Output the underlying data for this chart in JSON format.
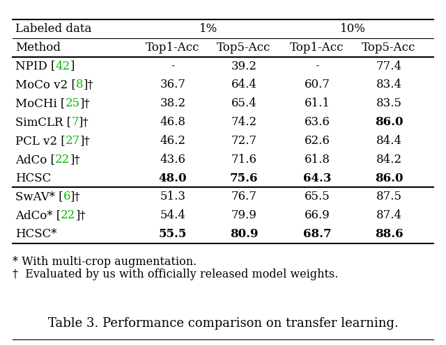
{
  "title": "Table 3. Performance comparison on transfer learning.",
  "footnote1": "* With multi-crop augmentation.",
  "footnote2": "†  Evaluated by us with officially released model weights.",
  "rows": [
    {
      "method_parts": [
        [
          "NPID [",
          "black"
        ],
        [
          "42",
          "#00bb00"
        ],
        [
          "]",
          "black"
        ]
      ],
      "values": [
        "-",
        "39.2",
        "-",
        "77.4"
      ],
      "bold": [
        false,
        false,
        false,
        false
      ]
    },
    {
      "method_parts": [
        [
          "MoCo v2 [",
          "black"
        ],
        [
          "8",
          "#00bb00"
        ],
        [
          "]†",
          "black"
        ]
      ],
      "values": [
        "36.7",
        "64.4",
        "60.7",
        "83.4"
      ],
      "bold": [
        false,
        false,
        false,
        false
      ]
    },
    {
      "method_parts": [
        [
          "MoCHi [",
          "black"
        ],
        [
          "25",
          "#00bb00"
        ],
        [
          "]†",
          "black"
        ]
      ],
      "values": [
        "38.2",
        "65.4",
        "61.1",
        "83.5"
      ],
      "bold": [
        false,
        false,
        false,
        false
      ]
    },
    {
      "method_parts": [
        [
          "SimCLR [",
          "black"
        ],
        [
          "7",
          "#00bb00"
        ],
        [
          "]†",
          "black"
        ]
      ],
      "values": [
        "46.8",
        "74.2",
        "63.6",
        "86.0"
      ],
      "bold": [
        false,
        false,
        false,
        true
      ]
    },
    {
      "method_parts": [
        [
          "PCL v2 [",
          "black"
        ],
        [
          "27",
          "#00bb00"
        ],
        [
          "]†",
          "black"
        ]
      ],
      "values": [
        "46.2",
        "72.7",
        "62.6",
        "84.4"
      ],
      "bold": [
        false,
        false,
        false,
        false
      ]
    },
    {
      "method_parts": [
        [
          "AdCo [",
          "black"
        ],
        [
          "22",
          "#00bb00"
        ],
        [
          "]†",
          "black"
        ]
      ],
      "values": [
        "43.6",
        "71.6",
        "61.8",
        "84.2"
      ],
      "bold": [
        false,
        false,
        false,
        false
      ]
    },
    {
      "method_parts": [
        [
          "HCSC",
          "black"
        ]
      ],
      "values": [
        "48.0",
        "75.6",
        "64.3",
        "86.0"
      ],
      "bold": [
        true,
        true,
        true,
        true
      ],
      "separator_below": true
    },
    {
      "method_parts": [
        [
          "SwAV* [",
          "black"
        ],
        [
          "6",
          "#00bb00"
        ],
        [
          "]†",
          "black"
        ]
      ],
      "values": [
        "51.3",
        "76.7",
        "65.5",
        "87.5"
      ],
      "bold": [
        false,
        false,
        false,
        false
      ]
    },
    {
      "method_parts": [
        [
          "AdCo* [",
          "black"
        ],
        [
          "22",
          "#00bb00"
        ],
        [
          "]†",
          "black"
        ]
      ],
      "values": [
        "54.4",
        "79.9",
        "66.9",
        "87.4"
      ],
      "bold": [
        false,
        false,
        false,
        false
      ]
    },
    {
      "method_parts": [
        [
          "HCSC*",
          "black"
        ]
      ],
      "values": [
        "55.5",
        "80.9",
        "68.7",
        "88.6"
      ],
      "bold": [
        true,
        true,
        true,
        true
      ]
    }
  ],
  "bg_color": "#ffffff",
  "font_size": 12.0,
  "title_font_size": 13.0,
  "footnote_font_size": 11.5,
  "green_color": "#00bb00"
}
